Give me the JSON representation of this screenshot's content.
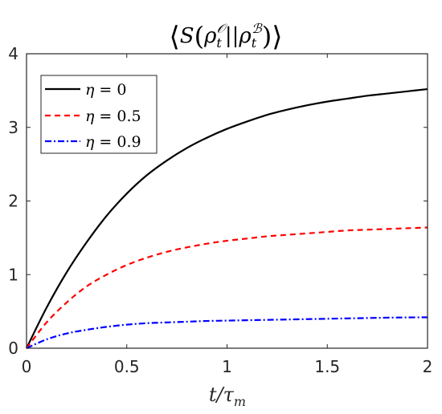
{
  "chart_data": {
    "type": "line",
    "title": "⟨S(ρ_t^𝒪 || ρ_t^ℬ)⟩",
    "title_parts": {
      "open": "⟨",
      "s": "S",
      "rho1": "ρ",
      "sub1": "t",
      "sup1": "𝒪",
      "sep": "||",
      "rho2": "ρ",
      "sub2": "t",
      "sup2": "ℬ",
      "close": "⟩"
    },
    "xlabel": "t/τ_m",
    "xlabel_parts": {
      "main": "t/τ",
      "sub": "m"
    },
    "ylabel": "",
    "xlim": [
      0,
      2
    ],
    "ylim": [
      0,
      4
    ],
    "xticks": [
      0,
      0.5,
      1,
      1.5,
      2
    ],
    "xtick_labels": [
      "0",
      "0.5",
      "1",
      "1.5",
      "2"
    ],
    "yticks": [
      0,
      1,
      2,
      3,
      4
    ],
    "ytick_labels": [
      "0",
      "1",
      "2",
      "3",
      "4"
    ],
    "grid": false,
    "legend_position": "top-left",
    "x": [
      0,
      0.1,
      0.2,
      0.3,
      0.4,
      0.5,
      0.6,
      0.7,
      0.8,
      0.9,
      1.0,
      1.1,
      1.2,
      1.3,
      1.4,
      1.5,
      1.6,
      1.7,
      1.8,
      1.9,
      2.0
    ],
    "series": [
      {
        "name": "η = 0",
        "legend_parts": {
          "symbol": "η",
          "rest": " = 0"
        },
        "color": "#000000",
        "dash": "solid",
        "values": [
          0,
          0.55,
          1.03,
          1.44,
          1.8,
          2.1,
          2.35,
          2.55,
          2.72,
          2.86,
          2.98,
          3.08,
          3.17,
          3.24,
          3.3,
          3.35,
          3.39,
          3.43,
          3.46,
          3.49,
          3.52
        ]
      },
      {
        "name": "η = 0.5",
        "legend_parts": {
          "symbol": "η",
          "rest": " = 0.5"
        },
        "color": "#ff0000",
        "dash": "dashed",
        "values": [
          0,
          0.35,
          0.62,
          0.84,
          1.0,
          1.13,
          1.23,
          1.31,
          1.37,
          1.42,
          1.46,
          1.49,
          1.52,
          1.54,
          1.56,
          1.58,
          1.6,
          1.61,
          1.62,
          1.63,
          1.64
        ]
      },
      {
        "name": "η = 0.9",
        "legend_parts": {
          "symbol": "η",
          "rest": " = 0.9"
        },
        "color": "#0000ff",
        "dash": "dashdot",
        "values": [
          0,
          0.12,
          0.2,
          0.25,
          0.29,
          0.32,
          0.34,
          0.35,
          0.36,
          0.37,
          0.375,
          0.38,
          0.385,
          0.39,
          0.395,
          0.4,
          0.405,
          0.41,
          0.415,
          0.418,
          0.42
        ]
      }
    ]
  }
}
